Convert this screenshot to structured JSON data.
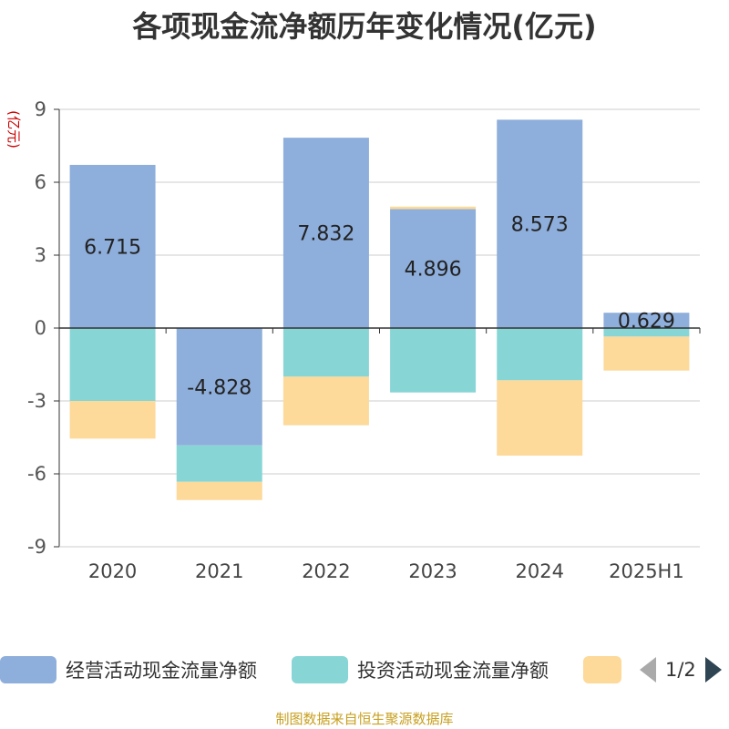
{
  "title": "各项现金流净额历年变化情况(亿元)",
  "source_note": "制图数据来自恒生聚源数据库",
  "legend": {
    "items": [
      {
        "label": "经营活动现金流量净额",
        "color": "#8eaedb"
      },
      {
        "label": "投资活动现金流量净额",
        "color": "#88d5d6"
      },
      {
        "label": "",
        "color": "#fdd99a"
      }
    ],
    "page_text": "1/2"
  },
  "chart_data": {
    "type": "bar",
    "stacked": true,
    "ylabel": "(亿元)",
    "ylim": [
      -9,
      9
    ],
    "yticks": [
      9,
      6,
      3,
      0,
      -3,
      -6,
      -9
    ],
    "grid": true,
    "legend_position": "bottom",
    "categories": [
      "2020",
      "2021",
      "2022",
      "2023",
      "2024",
      "2025H1"
    ],
    "series": [
      {
        "name": "经营活动现金流量净额",
        "color": "#8eaedb",
        "values": [
          6.715,
          -4.828,
          7.832,
          4.896,
          8.573,
          0.629
        ],
        "labels": [
          "6.715",
          "-4.828",
          "7.832",
          "4.896",
          "8.573",
          "0.629"
        ]
      },
      {
        "name": "投资活动现金流量净额",
        "color": "#88d5d6",
        "values": [
          -3.0,
          -1.5,
          -2.0,
          -2.65,
          -2.15,
          -0.35
        ]
      },
      {
        "color": "#fdd99a",
        "values": [
          -1.55,
          -0.75,
          -2.0,
          0.1,
          -3.1,
          -1.4
        ]
      }
    ]
  }
}
